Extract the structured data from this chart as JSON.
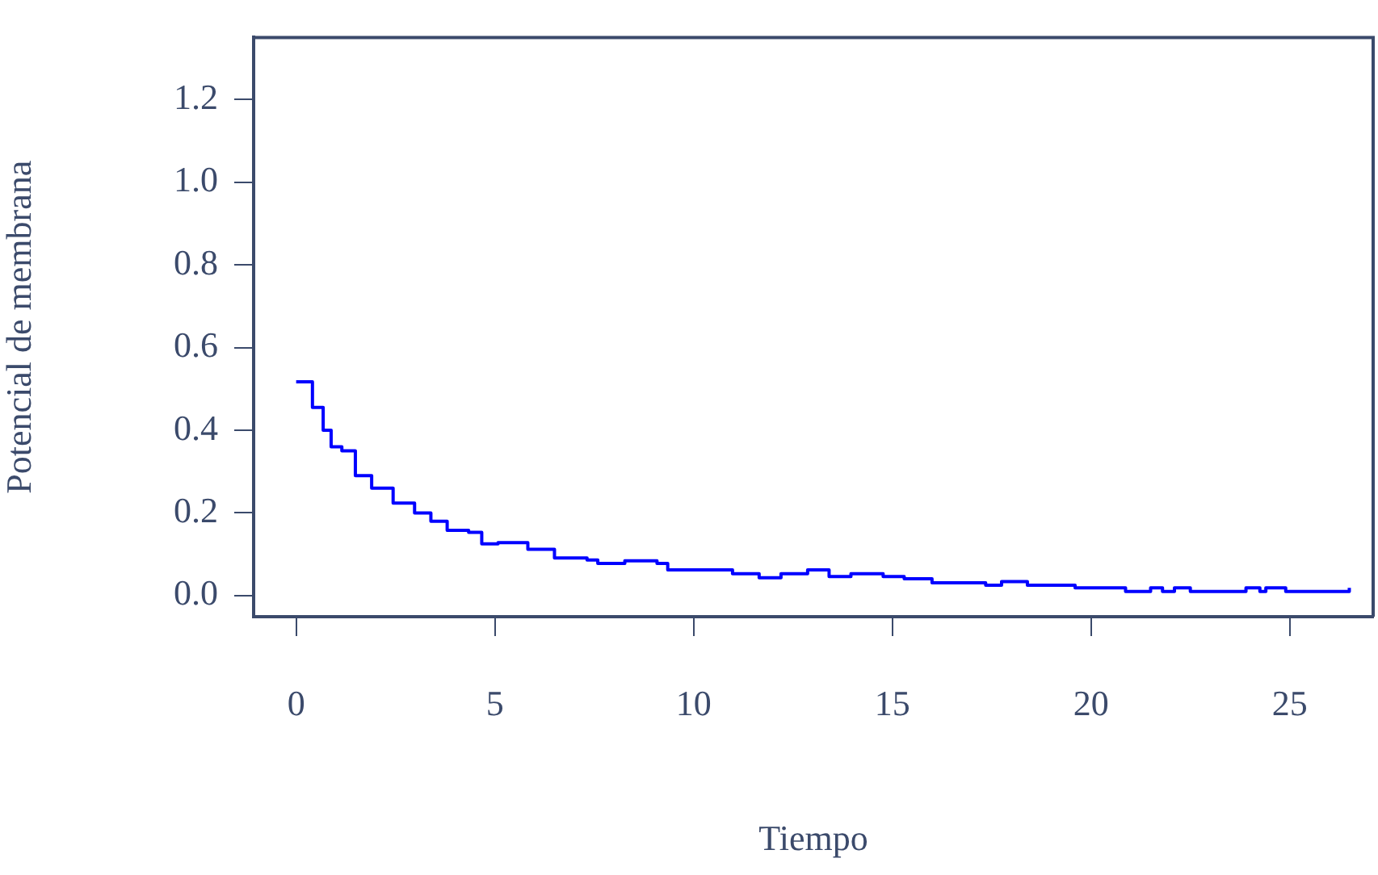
{
  "chart_data": {
    "type": "step",
    "xlabel": "Tiempo",
    "ylabel": "Potencial de membrana",
    "grid": false,
    "legend": false,
    "marker": "none",
    "line_style": "solid",
    "xlim": [
      -1.07,
      27.1
    ],
    "ylim": [
      -0.051,
      1.35
    ],
    "xticks": [
      0,
      5,
      10,
      15,
      20,
      25
    ],
    "yticks": [
      {
        "value": 0,
        "label": "0.0"
      },
      {
        "value": 0.2,
        "label": "0.2"
      },
      {
        "value": 0.4,
        "label": "0.4"
      },
      {
        "value": 0.6,
        "label": "0.6"
      },
      {
        "value": 0.8,
        "label": "0.8"
      },
      {
        "value": 1,
        "label": "1.0"
      },
      {
        "value": 1.2,
        "label": "1.2"
      }
    ],
    "series": [
      {
        "color": "#0000ff",
        "x": [
          0,
          0.41,
          0.68,
          0.88,
          1.15,
          1.49,
          1.9,
          2.44,
          2.98,
          3.39,
          3.8,
          4.34,
          4.67,
          5.08,
          5.83,
          6.5,
          7.32,
          7.59,
          8.27,
          9.08,
          9.35,
          10.3,
          10.98,
          11.65,
          12.2,
          12.87,
          13.41,
          13.96,
          14.77,
          15.3,
          16.0,
          17.35,
          17.75,
          18.4,
          19.6,
          20.87,
          21.5,
          21.8,
          22.1,
          22.5,
          23.9,
          24.25,
          24.4,
          24.9,
          26.4,
          26.5
        ],
        "values": [
          0.517,
          0.455,
          0.4,
          0.36,
          0.35,
          0.29,
          0.26,
          0.224,
          0.2,
          0.18,
          0.158,
          0.153,
          0.125,
          0.128,
          0.112,
          0.091,
          0.086,
          0.078,
          0.084,
          0.078,
          0.062,
          0.062,
          0.053,
          0.043,
          0.053,
          0.062,
          0.046,
          0.053,
          0.046,
          0.041,
          0.031,
          0.025,
          0.034,
          0.025,
          0.019,
          0.01,
          0.019,
          0.01,
          0.019,
          0.01,
          0.019,
          0.01,
          0.019,
          0.01,
          0.01,
          0.019
        ]
      }
    ]
  }
}
